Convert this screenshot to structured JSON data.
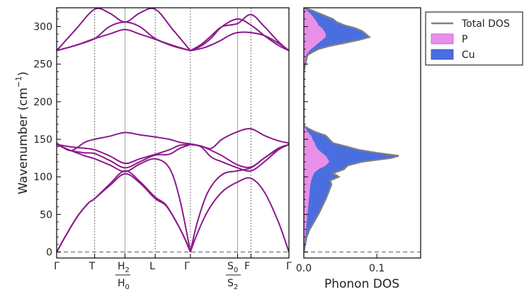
{
  "chart_data": [
    {
      "type": "line",
      "panel": "band-structure",
      "ylabel": "Wavenumber (cm",
      "ylabel_sup": "−1",
      "ylabel_tail": ")",
      "ylim": [
        -8,
        325
      ],
      "yticks": [
        0,
        50,
        100,
        150,
        200,
        250,
        300
      ],
      "kpoints": [
        {
          "label": "Γ",
          "x": 0.0,
          "line": "none"
        },
        {
          "label": "T",
          "x": 0.54,
          "line": "dashed"
        },
        {
          "label": "H2|H0",
          "x": 0.97,
          "line": "solid"
        },
        {
          "label": "L",
          "x": 1.4,
          "line": "dashed"
        },
        {
          "label": "Γ",
          "x": 1.9,
          "line": "dashed"
        },
        {
          "label": "S0|S2",
          "x": 2.57,
          "line": "solid"
        },
        {
          "label": "F",
          "x": 2.76,
          "line": "dashed"
        },
        {
          "label": "Γ",
          "x": 3.3,
          "line": "none"
        }
      ],
      "tick_labels": {
        "g1": "Γ",
        "t": "T",
        "h2_main": "H",
        "h2_sub": "2",
        "h0_main": "H",
        "h0_sub": "0",
        "l": "L",
        "g2": "Γ",
        "s0_main": "S",
        "s0_sub": "0",
        "s2_main": "S",
        "s2_sub": "2",
        "f": "F",
        "g3": "Γ"
      },
      "line_color": "#8b1a8b",
      "zero_line": {
        "y": 0,
        "style": "dashed",
        "color": "#888888"
      },
      "series": [
        {
          "x": [
            0,
            0.27,
            0.54,
            0.75,
            0.97,
            1.18,
            1.4,
            1.65,
            1.9
          ],
          "y": [
            268,
            275,
            284,
            290,
            296,
            290,
            283,
            274,
            268
          ]
        },
        {
          "x": [
            0,
            0.27,
            0.54,
            0.75,
            0.97,
            1.18,
            1.4,
            1.65,
            1.9
          ],
          "y": [
            268,
            296,
            323,
            318,
            306,
            318,
            323,
            296,
            268
          ]
        },
        {
          "x": [
            0,
            0.27,
            0.54,
            0.75,
            0.97,
            1.18,
            1.4,
            1.65,
            1.9
          ],
          "y": [
            268,
            275,
            284,
            300,
            306,
            300,
            284,
            275,
            268
          ]
        },
        {
          "x": [
            1.9,
            2.05,
            2.2,
            2.35,
            2.57,
            2.76,
            2.95,
            3.15,
            3.3
          ],
          "y": [
            268,
            274,
            285,
            300,
            310,
            302,
            288,
            275,
            268
          ]
        },
        {
          "x": [
            1.9,
            2.05,
            2.2,
            2.35,
            2.57,
            2.76,
            2.95,
            3.15,
            3.3
          ],
          "y": [
            268,
            276,
            288,
            300,
            304,
            316,
            300,
            280,
            268
          ]
        },
        {
          "x": [
            1.9,
            2.1,
            2.3,
            2.45,
            2.57,
            2.76,
            2.95,
            3.15,
            3.3
          ],
          "y": [
            268,
            272,
            280,
            288,
            292,
            292,
            288,
            278,
            268
          ]
        },
        {
          "x": [
            0,
            0.15,
            0.3,
            0.45,
            0.54,
            0.75,
            0.97,
            1.18,
            1.4,
            1.55,
            1.7,
            1.82,
            1.9
          ],
          "y": [
            0,
            25,
            48,
            65,
            71,
            88,
            104,
            92,
            71,
            62,
            40,
            18,
            0
          ]
        },
        {
          "x": [
            0,
            0.15,
            0.3,
            0.45,
            0.54,
            0.75,
            0.97,
            1.18,
            1.4,
            1.55,
            1.7,
            1.82,
            1.9
          ],
          "y": [
            0,
            25,
            48,
            65,
            71,
            90,
            108,
            94,
            73,
            63,
            40,
            18,
            0
          ]
        },
        {
          "x": [
            0,
            0.2,
            0.4,
            0.54,
            0.75,
            0.97,
            1.18,
            1.4,
            1.6,
            1.75,
            1.9
          ],
          "y": [
            143,
            135,
            128,
            124,
            116,
            107,
            117,
            124,
            112,
            70,
            0
          ]
        },
        {
          "x": [
            0,
            0.2,
            0.4,
            0.54,
            0.75,
            0.97,
            1.18,
            1.4,
            1.6,
            1.75,
            1.9
          ],
          "y": [
            143,
            135,
            132,
            131,
            122,
            112,
            120,
            129,
            130,
            138,
            143
          ]
        },
        {
          "x": [
            0,
            0.2,
            0.4,
            0.54,
            0.75,
            0.97,
            1.18,
            1.4,
            1.6,
            1.75,
            1.9
          ],
          "y": [
            143,
            140,
            138,
            136,
            128,
            118,
            124,
            130,
            136,
            142,
            143
          ]
        },
        {
          "x": [
            0,
            0.2,
            0.4,
            0.54,
            0.75,
            0.97,
            1.18,
            1.4,
            1.6,
            1.75,
            1.9
          ],
          "y": [
            145,
            135,
            146,
            150,
            154,
            159,
            156,
            153,
            150,
            146,
            144
          ]
        },
        {
          "x": [
            1.9,
            2.0,
            2.15,
            2.35,
            2.57,
            2.76,
            2.95,
            3.15,
            3.3
          ],
          "y": [
            0,
            25,
            55,
            80,
            93,
            98,
            80,
            40,
            0
          ]
        },
        {
          "x": [
            1.9,
            2.0,
            2.15,
            2.35,
            2.57,
            2.76,
            2.95,
            3.15,
            3.3
          ],
          "y": [
            0,
            40,
            80,
            103,
            108,
            112,
            125,
            137,
            143
          ]
        },
        {
          "x": [
            1.9,
            2.05,
            2.2,
            2.35,
            2.57,
            2.76,
            2.95,
            3.15,
            3.3
          ],
          "y": [
            143,
            140,
            126,
            120,
            112,
            108,
            120,
            136,
            143
          ]
        },
        {
          "x": [
            1.9,
            2.05,
            2.2,
            2.35,
            2.57,
            2.76,
            2.95,
            3.15,
            3.3
          ],
          "y": [
            143,
            141,
            135,
            128,
            116,
            113,
            125,
            138,
            143
          ]
        },
        {
          "x": [
            1.9,
            2.05,
            2.2,
            2.35,
            2.57,
            2.76,
            2.95,
            3.15,
            3.3
          ],
          "y": [
            144,
            141,
            138,
            150,
            160,
            164,
            155,
            148,
            145
          ]
        }
      ]
    },
    {
      "type": "area",
      "panel": "phonon-dos",
      "xlabel": "Phonon DOS",
      "xlim": [
        0,
        0.16
      ],
      "xticks": [
        0.0,
        0.1
      ],
      "xtick_labels": [
        "0.0",
        "0.1"
      ],
      "ylim": [
        -8,
        325
      ],
      "legend": {
        "placement": "outside-right",
        "entries": [
          {
            "label": "Total DOS",
            "color": "#808080",
            "kind": "line"
          },
          {
            "label": "P",
            "color": "#e88fe8",
            "kind": "patch"
          },
          {
            "label": "Cu",
            "color": "#4a6ee0",
            "kind": "patch"
          }
        ]
      },
      "colors": {
        "total": "#808080",
        "p": "#e88fe8",
        "cu": "#4a6ee0"
      },
      "dos_freq": [
        0,
        10,
        20,
        30,
        40,
        50,
        60,
        70,
        80,
        90,
        95,
        100,
        105,
        110,
        115,
        120,
        125,
        128,
        132,
        136,
        140,
        145,
        150,
        155,
        160,
        165,
        168,
        240,
        262,
        266,
        270,
        274,
        278,
        282,
        286,
        290,
        294,
        298,
        302,
        306,
        310,
        314,
        318,
        322,
        325
      ],
      "dos_total": [
        0,
        0.002,
        0.004,
        0.008,
        0.014,
        0.02,
        0.025,
        0.03,
        0.034,
        0.038,
        0.036,
        0.048,
        0.04,
        0.055,
        0.06,
        0.08,
        0.12,
        0.13,
        0.1,
        0.075,
        0.06,
        0.04,
        0.035,
        0.03,
        0.015,
        0.005,
        0,
        0,
        0.005,
        0.012,
        0.02,
        0.035,
        0.055,
        0.075,
        0.09,
        0.085,
        0.08,
        0.07,
        0.055,
        0.045,
        0.04,
        0.03,
        0.02,
        0.01,
        0
      ],
      "dos_p": [
        0,
        0.001,
        0.002,
        0.003,
        0.004,
        0.005,
        0.006,
        0.007,
        0.008,
        0.009,
        0.01,
        0.012,
        0.014,
        0.02,
        0.03,
        0.035,
        0.032,
        0.03,
        0.025,
        0.02,
        0.017,
        0.015,
        0.012,
        0.01,
        0.005,
        0.002,
        0,
        0,
        0.003,
        0.006,
        0.01,
        0.015,
        0.02,
        0.025,
        0.03,
        0.03,
        0.028,
        0.025,
        0.02,
        0.018,
        0.015,
        0.012,
        0.008,
        0.004,
        0
      ]
    }
  ]
}
